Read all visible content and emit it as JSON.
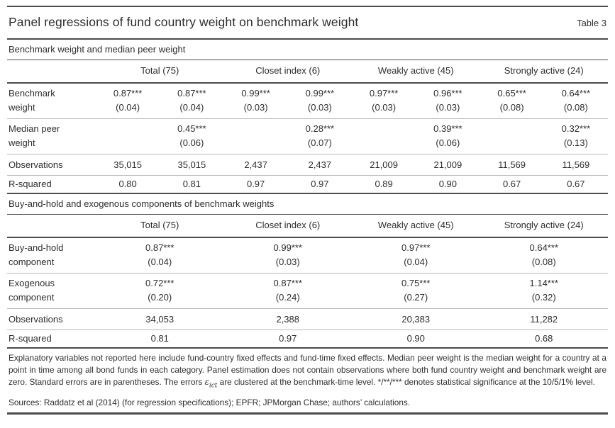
{
  "title": "Panel regressions of fund country weight on benchmark weight",
  "table_label": "Table 3",
  "panel1": {
    "section_title": "Benchmark weight and median peer weight",
    "group_headers": [
      "Total (75)",
      "Closet index (6)",
      "Weakly active (45)",
      "Strongly active (24)"
    ],
    "rows": [
      {
        "label_line1": "Benchmark",
        "label_line2": "weight",
        "coefs": [
          "0.87***",
          "0.87***",
          "0.99***",
          "0.99***",
          "0.97***",
          "0.96***",
          "0.65***",
          "0.64***"
        ],
        "ses": [
          "(0.04)",
          "(0.04)",
          "(0.03)",
          "(0.03)",
          "(0.03)",
          "(0.03)",
          "(0.08)",
          "(0.08)"
        ]
      },
      {
        "label_line1": "Median peer",
        "label_line2": "weight",
        "coefs": [
          "",
          "0.45***",
          "",
          "0.28***",
          "",
          "0.39***",
          "",
          "0.32***"
        ],
        "ses": [
          "",
          "(0.06)",
          "",
          "(0.07)",
          "",
          "(0.06)",
          "",
          "(0.13)"
        ]
      }
    ],
    "observations": {
      "label": "Observations",
      "values": [
        "35,015",
        "35,015",
        "2,437",
        "2,437",
        "21,009",
        "21,009",
        "11,569",
        "11,569"
      ]
    },
    "r_squared": {
      "label": "R-squared",
      "values": [
        "0.80",
        "0.81",
        "0.97",
        "0.97",
        "0.89",
        "0.90",
        "0.67",
        "0.67"
      ]
    }
  },
  "panel2": {
    "section_title": "Buy-and-hold and exogenous components of benchmark weights",
    "group_headers": [
      "Total (75)",
      "Closet index (6)",
      "Weakly active (45)",
      "Strongly active (24)"
    ],
    "rows": [
      {
        "label_line1": "Buy-and-hold",
        "label_line2": "component",
        "coefs": [
          "0.87***",
          "0.99***",
          "0.97***",
          "0.64***"
        ],
        "ses": [
          "(0.04)",
          "(0.03)",
          "(0.04)",
          "(0.08)"
        ]
      },
      {
        "label_line1": "Exogenous",
        "label_line2": "component",
        "coefs": [
          "0.72***",
          "0.87***",
          "0.75***",
          "1.14***"
        ],
        "ses": [
          "(0.20)",
          "(0.24)",
          "(0.27)",
          "(0.32)"
        ]
      }
    ],
    "observations": {
      "label": "Observations",
      "values": [
        "34,053",
        "2,388",
        "20,383",
        "11,282"
      ]
    },
    "r_squared": {
      "label": "R-squared",
      "values": [
        "0.81",
        "0.97",
        "0.90",
        "0.68"
      ]
    }
  },
  "footnote": {
    "part1": "Explanatory variables not reported here include fund-country fixed effects and fund-time fixed effects. Median peer weight is the median weight for a country at a point in time among all bond funds in each category. Panel estimation does not contain observations where both fund country weight and benchmark weight are zero. Standard errors are in parentheses. The errors ",
    "epsilon": "ε",
    "subscript": "ict",
    "part2": " are clustered at the benchmark-time level. */**/*** denotes statistical significance at the 10/5/1% level."
  },
  "sources": "Sources: Raddatz et al (2014) (for regression specifications); EPFR; JPMorgan Chase; authors’ calculations."
}
